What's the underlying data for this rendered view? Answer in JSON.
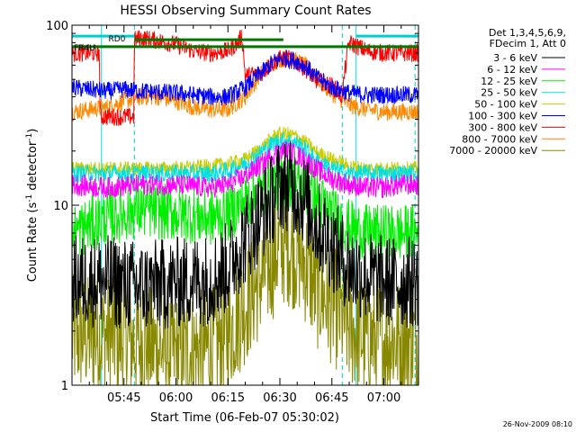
{
  "chart_data": {
    "type": "line",
    "title": "HESSI Observing Summary Count Rates",
    "xlabel": "Start Time (06-Feb-07 05:30:02)",
    "ylabel": "Count Rate (s",
    "ylabel_sup": "-1",
    "ylabel_rest": " detector",
    "ylabel_end": ")",
    "y_scale": "log",
    "ylim": [
      1,
      100
    ],
    "xlim_minutes": [
      0,
      100
    ],
    "x_tick_labels": [
      "05:45",
      "06:00",
      "06:15",
      "06:30",
      "06:45",
      "07:00"
    ],
    "x_tick_minutes": [
      15,
      30,
      45,
      60,
      75,
      90
    ],
    "y_tick_labels": [
      "1",
      "10",
      "100"
    ],
    "y_tick_values": [
      1,
      10,
      100
    ],
    "timestamp": "26-Nov-2009 08:10",
    "legend_header": [
      "Det 1,3,4,5,6,9,",
      "FDecim 1, Att 0"
    ],
    "legend_placement": "right",
    "annotations": [
      {
        "text": "RD0",
        "x": 10,
        "y": 85
      },
      {
        "text": "FR4U",
        "x": 0,
        "y": 76
      }
    ],
    "cyan_solid_lines_minutes": [
      0,
      8.5,
      82
    ],
    "dashed_lines_minutes": [
      18,
      78,
      99
    ],
    "flag_segments": [
      {
        "color": "#00cfcf",
        "y": 87,
        "x0": 0,
        "x1": 18
      },
      {
        "color": "#00cfcf",
        "y": 87,
        "x0": 82,
        "x1": 100
      },
      {
        "color": "#007700",
        "y": 83,
        "x0": 18,
        "x1": 61
      },
      {
        "color": "#007700",
        "y": 76,
        "x0": 0,
        "x1": 100
      }
    ],
    "series": [
      {
        "name": "3 - 6 keV",
        "color": "#000000",
        "noise": 0.26,
        "x": [
          0,
          10,
          20,
          30,
          40,
          45,
          50,
          55,
          58,
          60,
          62,
          65,
          68,
          70,
          75,
          80,
          85,
          90,
          95,
          100
        ],
        "values": [
          3.8,
          3.8,
          3.5,
          3.7,
          3.9,
          4.5,
          6.5,
          9,
          11,
          13,
          13,
          12,
          10,
          8,
          6,
          4.5,
          4,
          3.8,
          3.7,
          3.8
        ]
      },
      {
        "name": "6 - 12 keV",
        "color": "#ff00ff",
        "noise": 0.06,
        "x": [
          0,
          10,
          20,
          30,
          40,
          45,
          50,
          55,
          58,
          60,
          62,
          65,
          68,
          70,
          75,
          80,
          85,
          90,
          95,
          100
        ],
        "values": [
          13,
          12.5,
          13,
          13,
          12.5,
          13,
          14.5,
          17,
          19,
          20,
          20,
          19,
          17.5,
          16,
          14,
          13,
          12.5,
          12.5,
          13,
          13
        ]
      },
      {
        "name": "12 - 25 keV",
        "color": "#00ee00",
        "noise": 0.16,
        "x": [
          0,
          10,
          20,
          30,
          40,
          45,
          50,
          55,
          58,
          60,
          62,
          65,
          68,
          70,
          75,
          80,
          85,
          90,
          95,
          100
        ],
        "values": [
          7,
          8.5,
          9.5,
          9,
          8.5,
          9,
          10.5,
          12,
          13,
          13.5,
          13.5,
          13,
          12,
          11,
          9,
          7.5,
          7,
          7,
          7,
          7
        ]
      },
      {
        "name": "25 - 50 keV",
        "color": "#00e0e0",
        "noise": 0.05,
        "x": [
          0,
          10,
          20,
          30,
          40,
          45,
          50,
          55,
          58,
          60,
          62,
          65,
          68,
          70,
          75,
          80,
          85,
          90,
          95,
          100
        ],
        "values": [
          15,
          15,
          15,
          15,
          15,
          15.5,
          17,
          20,
          22,
          23,
          23,
          22,
          20,
          18,
          16,
          15,
          15,
          15,
          15,
          15
        ]
      },
      {
        "name": "50 - 100 keV",
        "color": "#cccc00",
        "noise": 0.04,
        "x": [
          0,
          7.9,
          8,
          18,
          20,
          30,
          40,
          45,
          50,
          55,
          58,
          60,
          62,
          65,
          68,
          70,
          75,
          80,
          85,
          90,
          95,
          100
        ],
        "values": [
          16,
          16,
          16,
          16,
          16,
          16,
          16.5,
          17,
          18,
          21,
          24,
          25,
          25,
          24,
          22,
          20,
          18,
          16.5,
          16,
          16,
          16,
          16
        ]
      },
      {
        "name": "100 - 300 keV",
        "color": "#0000ff",
        "noise": 0.05,
        "x": [
          0,
          10,
          15,
          20,
          30,
          40,
          45,
          50,
          55,
          58,
          60,
          62,
          65,
          68,
          70,
          75,
          80,
          85,
          90,
          95,
          100
        ],
        "values": [
          45,
          43,
          44,
          43,
          42,
          40,
          40,
          45,
          55,
          62,
          65,
          65,
          63,
          58,
          52,
          45,
          42,
          41,
          41,
          41,
          41
        ]
      },
      {
        "name": "300 - 800 keV",
        "color": "#ff0000",
        "noise": 0.05,
        "x": [
          0,
          7.9,
          8.1,
          17.9,
          18,
          20,
          25,
          30,
          35,
          40,
          45,
          48,
          49,
          50,
          55,
          58,
          60,
          62,
          65,
          68,
          70,
          75,
          78,
          80,
          85,
          90,
          95,
          100
        ],
        "values": [
          70,
          70,
          31,
          31,
          83,
          85,
          82,
          78,
          72,
          70,
          72,
          80,
          88,
          52,
          55,
          62,
          65,
          66,
          62,
          56,
          50,
          46,
          40,
          80,
          72,
          70,
          70,
          70
        ]
      },
      {
        "name": "800 - 7000 keV",
        "color": "#ff8800",
        "noise": 0.05,
        "x": [
          0,
          10,
          15,
          20,
          25,
          30,
          35,
          40,
          45,
          50,
          55,
          58,
          60,
          62,
          65,
          68,
          70,
          75,
          80,
          85,
          90,
          95,
          100
        ],
        "values": [
          33,
          35,
          38,
          40,
          40,
          38,
          35,
          34,
          34,
          40,
          55,
          62,
          65,
          65,
          63,
          58,
          52,
          42,
          36,
          34,
          33,
          33,
          33
        ]
      },
      {
        "name": "7000 - 20000 keV",
        "color": "#888800",
        "noise": 0.34,
        "x": [
          0,
          10,
          20,
          30,
          40,
          45,
          50,
          55,
          58,
          60,
          62,
          65,
          68,
          70,
          75,
          80,
          85,
          90,
          95,
          100
        ],
        "values": [
          1.9,
          1.9,
          1.7,
          1.5,
          1.6,
          1.9,
          2.8,
          4,
          5,
          6,
          6,
          5.5,
          4.5,
          3.5,
          2.8,
          2.1,
          1.8,
          1.8,
          1.8,
          1.8
        ]
      }
    ]
  }
}
